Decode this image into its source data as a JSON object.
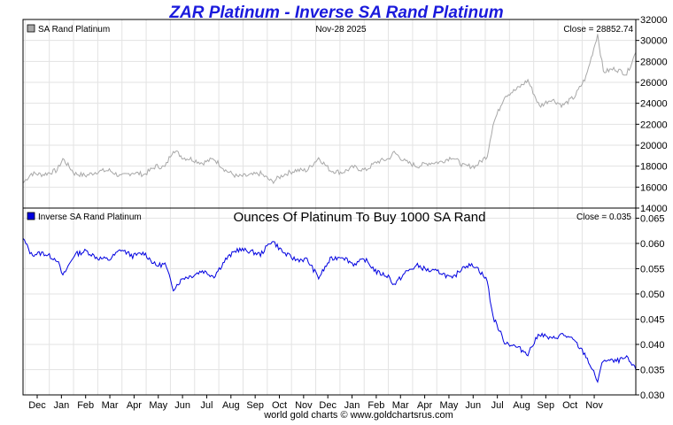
{
  "title": "ZAR Platinum - Inverse SA Rand Platinum",
  "footer": "world gold charts © www.goldchartsrus.com",
  "colors": {
    "title": "#1a1adc",
    "top_series": "#a8a8a8",
    "bottom_series": "#0000e0",
    "grid": "#e3e3e3",
    "frame": "#000000"
  },
  "x_labels": [
    "Dec",
    "Jan",
    "Feb",
    "Mar",
    "Apr",
    "May",
    "Jun",
    "Jul",
    "Aug",
    "Sep",
    "Oct",
    "Nov",
    "Dec",
    "Jan",
    "Feb",
    "Mar",
    "Apr",
    "May",
    "Jun",
    "Jul",
    "Aug",
    "Sep",
    "Oct",
    "Nov"
  ],
  "chart_data": [
    {
      "type": "line",
      "legend": "SA Rand Platinum",
      "date_label": "Nov-28  2025",
      "close_label": "Close = 28852.74",
      "ylim": [
        14000,
        32000
      ],
      "yticks": [
        14000,
        16000,
        18000,
        20000,
        22000,
        24000,
        26000,
        28000,
        30000,
        32000
      ],
      "grid": true,
      "legend_position": "top-left",
      "x_start": "2023-11-21",
      "x_end": "2025-11-28",
      "series": [
        {
          "name": "SA Rand Platinum",
          "points": [
            [
              "2023-11-21",
              16400
            ],
            [
              "2023-12-01",
              17300
            ],
            [
              "2023-12-15",
              17200
            ],
            [
              "2024-01-01",
              17600
            ],
            [
              "2024-01-08",
              18700
            ],
            [
              "2024-01-22",
              17300
            ],
            [
              "2024-02-05",
              17100
            ],
            [
              "2024-02-19",
              17500
            ],
            [
              "2024-03-04",
              17600
            ],
            [
              "2024-03-18",
              17000
            ],
            [
              "2024-04-01",
              17400
            ],
            [
              "2024-04-15",
              17200
            ],
            [
              "2024-04-29",
              18000
            ],
            [
              "2024-05-10",
              17900
            ],
            [
              "2024-05-20",
              19600
            ],
            [
              "2024-06-01",
              18800
            ],
            [
              "2024-06-10",
              18700
            ],
            [
              "2024-06-24",
              18300
            ],
            [
              "2024-07-08",
              18700
            ],
            [
              "2024-07-22",
              17600
            ],
            [
              "2024-08-05",
              17000
            ],
            [
              "2024-08-19",
              17100
            ],
            [
              "2024-09-02",
              17300
            ],
            [
              "2024-09-16",
              16500
            ],
            [
              "2024-09-30",
              17200
            ],
            [
              "2024-10-14",
              17600
            ],
            [
              "2024-10-28",
              17600
            ],
            [
              "2024-11-11",
              18800
            ],
            [
              "2024-11-25",
              17600
            ],
            [
              "2024-12-09",
              17400
            ],
            [
              "2024-12-23",
              17900
            ],
            [
              "2025-01-06",
              17600
            ],
            [
              "2025-01-20",
              18400
            ],
            [
              "2025-02-03",
              18700
            ],
            [
              "2025-02-10",
              19300
            ],
            [
              "2025-02-24",
              18400
            ],
            [
              "2025-03-10",
              18000
            ],
            [
              "2025-03-24",
              18300
            ],
            [
              "2025-04-07",
              18400
            ],
            [
              "2025-04-21",
              18900
            ],
            [
              "2025-05-05",
              18000
            ],
            [
              "2025-05-19",
              18000
            ],
            [
              "2025-06-02",
              19000
            ],
            [
              "2025-06-09",
              22000
            ],
            [
              "2025-06-23",
              24700
            ],
            [
              "2025-07-07",
              25300
            ],
            [
              "2025-07-21",
              26200
            ],
            [
              "2025-08-04",
              23700
            ],
            [
              "2025-08-18",
              24400
            ],
            [
              "2025-09-01",
              23800
            ],
            [
              "2025-09-15",
              24600
            ],
            [
              "2025-09-29",
              26500
            ],
            [
              "2025-10-13",
              30600
            ],
            [
              "2025-10-20",
              27000
            ],
            [
              "2025-11-03",
              27300
            ],
            [
              "2025-11-17",
              26800
            ],
            [
              "2025-11-28",
              28852.74
            ]
          ]
        }
      ]
    },
    {
      "type": "line",
      "title": "Ounces Of Platinum To Buy 1000 SA Rand",
      "legend": "Inverse SA Rand Platinum",
      "close_label": "Close = 0.035",
      "ylim": [
        0.03,
        0.067
      ],
      "yticks": [
        0.03,
        0.035,
        0.04,
        0.045,
        0.05,
        0.055,
        0.06,
        0.065
      ],
      "grid": true,
      "legend_position": "top-left",
      "x_start": "2023-11-21",
      "x_end": "2025-11-28",
      "series": [
        {
          "name": "Inverse SA Rand Platinum",
          "points": [
            [
              "2023-11-21",
              0.061
            ],
            [
              "2023-12-01",
              0.0578
            ],
            [
              "2023-12-15",
              0.0581
            ],
            [
              "2024-01-01",
              0.0568
            ],
            [
              "2024-01-08",
              0.0535
            ],
            [
              "2024-01-22",
              0.0578
            ],
            [
              "2024-02-05",
              0.0585
            ],
            [
              "2024-02-19",
              0.0571
            ],
            [
              "2024-03-04",
              0.0568
            ],
            [
              "2024-03-18",
              0.0588
            ],
            [
              "2024-04-01",
              0.0575
            ],
            [
              "2024-04-15",
              0.0581
            ],
            [
              "2024-04-29",
              0.0556
            ],
            [
              "2024-05-10",
              0.0559
            ],
            [
              "2024-05-20",
              0.051
            ],
            [
              "2024-06-01",
              0.0532
            ],
            [
              "2024-06-10",
              0.0535
            ],
            [
              "2024-06-24",
              0.0546
            ],
            [
              "2024-07-08",
              0.0535
            ],
            [
              "2024-07-22",
              0.0568
            ],
            [
              "2024-08-05",
              0.0588
            ],
            [
              "2024-08-19",
              0.0585
            ],
            [
              "2024-09-02",
              0.0578
            ],
            [
              "2024-09-16",
              0.0606
            ],
            [
              "2024-09-30",
              0.0581
            ],
            [
              "2024-10-14",
              0.0568
            ],
            [
              "2024-10-28",
              0.0568
            ],
            [
              "2024-11-11",
              0.0532
            ],
            [
              "2024-11-25",
              0.0568
            ],
            [
              "2024-12-09",
              0.0575
            ],
            [
              "2024-12-23",
              0.0559
            ],
            [
              "2025-01-06",
              0.0568
            ],
            [
              "2025-01-20",
              0.0543
            ],
            [
              "2025-02-03",
              0.0535
            ],
            [
              "2025-02-10",
              0.0518
            ],
            [
              "2025-02-24",
              0.0543
            ],
            [
              "2025-03-10",
              0.0556
            ],
            [
              "2025-03-24",
              0.0546
            ],
            [
              "2025-04-07",
              0.0543
            ],
            [
              "2025-04-21",
              0.0529
            ],
            [
              "2025-05-05",
              0.0556
            ],
            [
              "2025-05-19",
              0.0556
            ],
            [
              "2025-06-02",
              0.0526
            ],
            [
              "2025-06-09",
              0.0455
            ],
            [
              "2025-06-23",
              0.0405
            ],
            [
              "2025-07-07",
              0.0395
            ],
            [
              "2025-07-21",
              0.0382
            ],
            [
              "2025-08-04",
              0.0422
            ],
            [
              "2025-08-18",
              0.041
            ],
            [
              "2025-09-01",
              0.042
            ],
            [
              "2025-09-15",
              0.0407
            ],
            [
              "2025-09-29",
              0.0377
            ],
            [
              "2025-10-13",
              0.0327
            ],
            [
              "2025-10-20",
              0.037
            ],
            [
              "2025-11-03",
              0.0366
            ],
            [
              "2025-11-17",
              0.0373
            ],
            [
              "2025-11-28",
              0.035
            ]
          ]
        }
      ]
    }
  ]
}
